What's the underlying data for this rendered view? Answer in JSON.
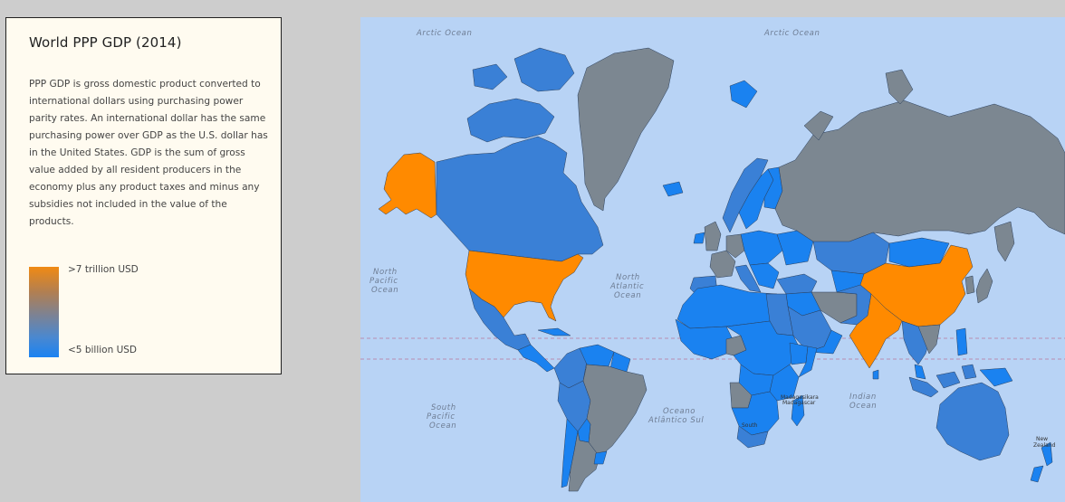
{
  "legend": {
    "title": "World PPP GDP (2014)",
    "description": "PPP GDP is gross domestic product converted to international dollars using purchasing power parity rates. An international dollar has the same purchasing power over GDP as the U.S. dollar has in the United States. GDP is the sum of gross value added by all resident producers in the economy plus any product taxes and minus any subsidies not included in the value of the products.",
    "scale_max": ">7 trillion USD",
    "scale_min": "<5 billion USD"
  },
  "colors": {
    "high": "#ff8a00",
    "mid": "#7c8791",
    "low": "#1a82f0",
    "lowish": "#3a80d6",
    "ocean": "#b8d3f5"
  },
  "map": {
    "ocean_labels": {
      "arctic_left": "Arctic Ocean",
      "arctic_right": "Arctic Ocean",
      "north_pacific": [
        "North",
        "Pacific",
        "Ocean"
      ],
      "north_atlantic": [
        "North",
        "Atlantic",
        "Ocean"
      ],
      "south_pacific": [
        "South",
        "Pacific",
        "Ocean"
      ],
      "south_atlantic": [
        "Oceano",
        "Atlântico Sul"
      ],
      "indian": [
        "Indian",
        "Ocean"
      ]
    },
    "place_labels": {
      "madagascar": [
        "Madagasikara",
        "Madagascar"
      ],
      "new_zealand": [
        "New",
        "Zealand"
      ],
      "south_africa": "South"
    }
  }
}
